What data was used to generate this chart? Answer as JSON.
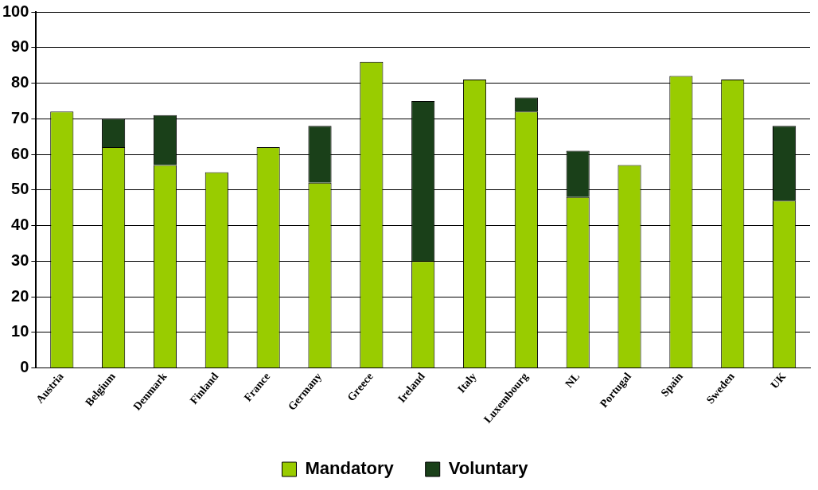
{
  "chart_data": {
    "type": "bar",
    "stacked": true,
    "categories": [
      "Austria",
      "Belgium",
      "Denmark",
      "Finland",
      "France",
      "Germany",
      "Greece",
      "Ireland",
      "Italy",
      "Luxembourg",
      "NL",
      "Portugal",
      "Spain",
      "Sweden",
      "UK"
    ],
    "series": [
      {
        "name": "Mandatory",
        "color": "#99cc00",
        "values": [
          72,
          62,
          57,
          55,
          62,
          52,
          86,
          30,
          81,
          72,
          48,
          57,
          82,
          81,
          47
        ]
      },
      {
        "name": "Voluntary",
        "color": "#1a4019",
        "values": [
          0,
          8,
          14,
          0,
          0,
          16,
          0,
          45,
          0,
          4,
          13,
          0,
          0,
          0,
          21
        ]
      }
    ],
    "ylim": [
      0,
      100
    ],
    "yticks": [
      0,
      10,
      20,
      30,
      40,
      50,
      60,
      70,
      80,
      90,
      100
    ],
    "grid": "y",
    "legend": "bottom"
  }
}
